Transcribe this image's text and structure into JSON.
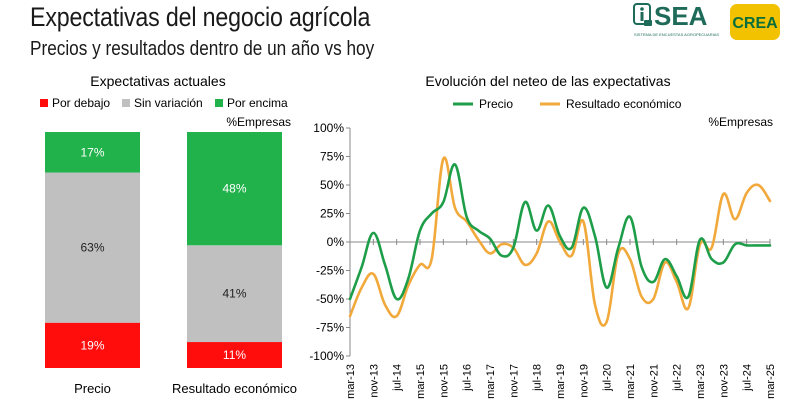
{
  "header": {
    "title": "Expectativas del negocio agrícola",
    "subtitle": "Precios y resultados dentro de un año vs hoy"
  },
  "logos": {
    "sea": {
      "text": "SEA",
      "icon": "info-icon",
      "tagline": "SISTEMA DE ENCUESTAS AGROPECUARIAS",
      "color": "#1f6b5a"
    },
    "crea": {
      "text": "CREA",
      "bg": "#f2c200",
      "fg": "#0a6e3c"
    }
  },
  "chart_data": [
    {
      "type": "bar",
      "stacked": true,
      "title": "Expectativas actuales",
      "unit_label": "%Empresas",
      "categories": [
        "Precio",
        "Resultado económico"
      ],
      "series": [
        {
          "name": "Por debajo",
          "color": "#ff0d0d",
          "values": [
            19,
            11
          ],
          "labels": [
            "19%",
            "11%"
          ]
        },
        {
          "name": "Sin variación",
          "color": "#c0c0c0",
          "values": [
            63,
            41
          ],
          "labels": [
            "63%",
            "41%"
          ]
        },
        {
          "name": "Por encima",
          "color": "#22b24c",
          "values": [
            17,
            48
          ],
          "labels": [
            "17%",
            "48%"
          ]
        }
      ],
      "legend": "top",
      "ylim": [
        0,
        100
      ]
    },
    {
      "type": "line",
      "title": "Evolución del neteo de las expectativas",
      "unit_label": "%Empresas",
      "x": [
        "mar-13",
        "nov-13",
        "jul-14",
        "mar-15",
        "nov-15",
        "jul-16",
        "mar-17",
        "nov-17",
        "jul-18",
        "mar-19",
        "nov-19",
        "jul-20",
        "mar-21",
        "nov-21",
        "jul-22",
        "mar-23",
        "nov-23",
        "jul-24",
        "mar-25"
      ],
      "y_ticks": [
        "100%",
        "75%",
        "50%",
        "25%",
        "0%",
        "-25%",
        "-50%",
        "-75%",
        "-100%"
      ],
      "ylim": [
        -100,
        100
      ],
      "legend": "top",
      "grid": false,
      "series": [
        {
          "name": "Precio",
          "color": "#1f9e4a",
          "x": [
            0,
            0.5,
            1,
            1.5,
            2,
            2.5,
            3,
            3.5,
            4,
            4.5,
            5,
            5.5,
            6,
            6.5,
            7,
            7.5,
            8,
            8.5,
            9,
            9.5,
            10,
            10.5,
            11,
            11.5,
            12,
            12.5,
            13,
            13.5,
            14,
            14.5,
            15,
            15.5,
            16,
            16.5,
            17,
            17.5,
            18
          ],
          "values": [
            -50,
            -22,
            8,
            -20,
            -50,
            -32,
            10,
            25,
            35,
            68,
            22,
            10,
            3,
            -12,
            -5,
            35,
            10,
            32,
            5,
            -5,
            30,
            5,
            -40,
            -5,
            22,
            -22,
            -35,
            -15,
            -30,
            -48,
            2,
            -15,
            -18,
            -2,
            -3,
            -3,
            -3
          ]
        },
        {
          "name": "Resultado económico",
          "color": "#f2a93b",
          "x": [
            0,
            0.5,
            1,
            1.5,
            2,
            2.5,
            3,
            3.5,
            4,
            4.5,
            5,
            5.5,
            6,
            6.5,
            7,
            7.5,
            8,
            8.5,
            9,
            9.5,
            10,
            10.5,
            11,
            11.5,
            12,
            12.5,
            13,
            13.5,
            14,
            14.5,
            15,
            15.5,
            16,
            16.5,
            17,
            17.5,
            18
          ],
          "values": [
            -65,
            -40,
            -28,
            -55,
            -65,
            -38,
            -20,
            -15,
            73,
            30,
            18,
            2,
            -10,
            -2,
            -5,
            -20,
            -10,
            18,
            0,
            -12,
            18,
            -55,
            -70,
            -10,
            -15,
            -48,
            -50,
            -18,
            -35,
            -58,
            -2,
            -5,
            42,
            20,
            43,
            50,
            36
          ]
        }
      ]
    }
  ]
}
